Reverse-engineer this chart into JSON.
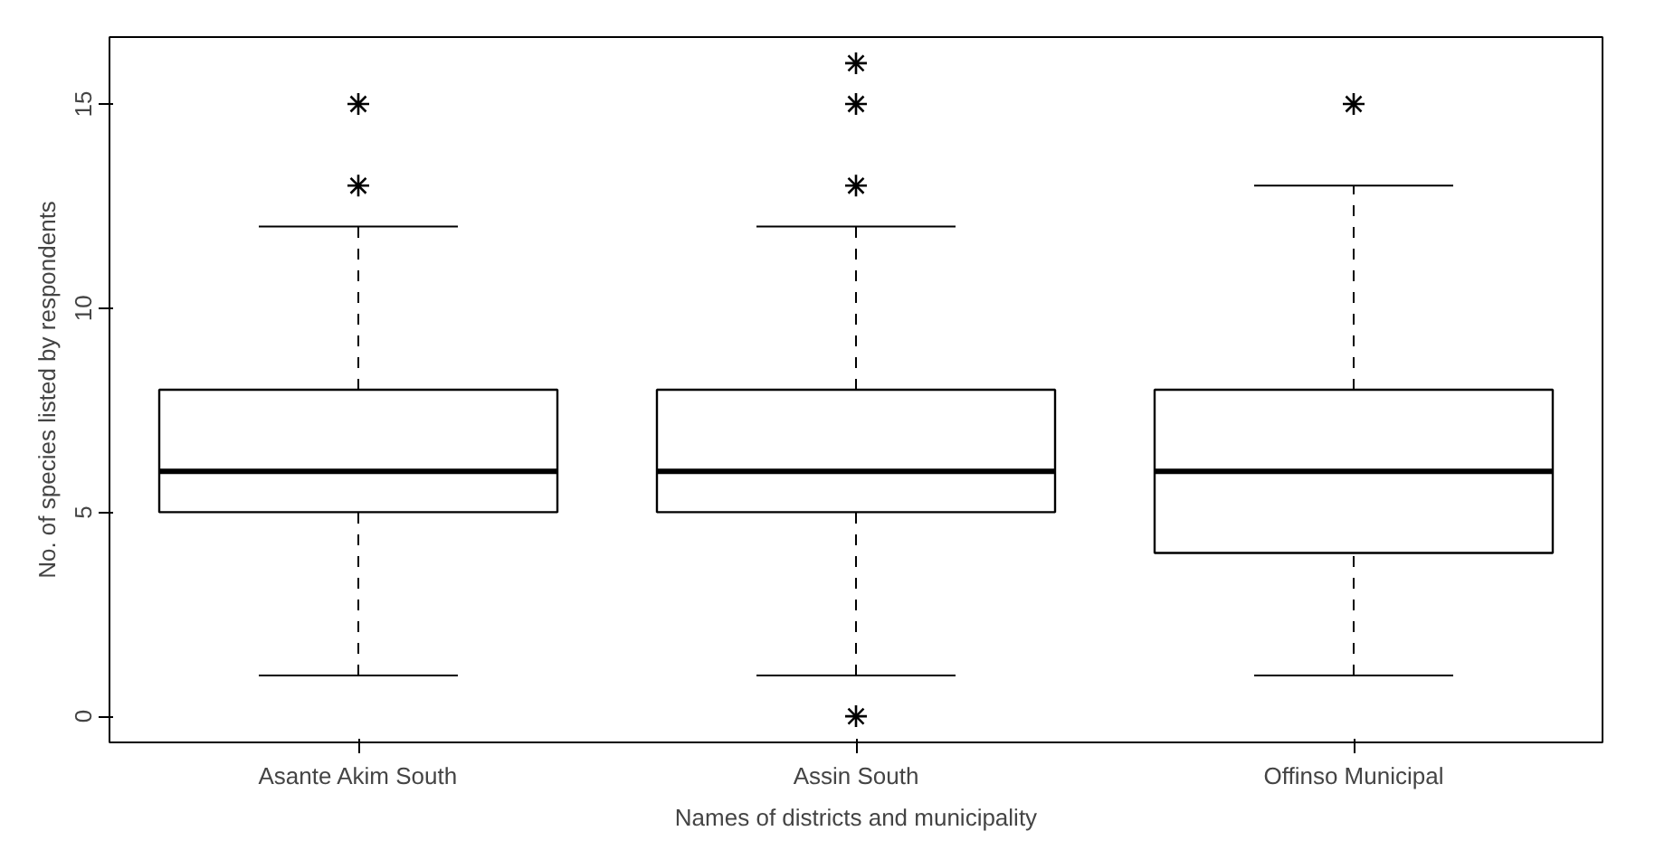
{
  "chart_data": {
    "type": "box",
    "xlabel": "Names of districts and municipality",
    "ylabel": "No. of species listed by respondents",
    "categories": [
      "Asante Akim South",
      "Assin South",
      "Offinso Municipal"
    ],
    "boxes": [
      {
        "low": 1,
        "q1": 5,
        "median": 6,
        "q3": 8,
        "high": 12,
        "outliers": [
          13,
          15
        ]
      },
      {
        "low": 1,
        "q1": 5,
        "median": 6,
        "q3": 8,
        "high": 12,
        "outliers": [
          0,
          13,
          15,
          16
        ]
      },
      {
        "low": 1,
        "q1": 4,
        "median": 6,
        "q3": 8,
        "high": 13,
        "outliers": [
          15
        ]
      }
    ],
    "ylim": [
      -0.64,
      16.64
    ],
    "yticks": [
      0,
      5,
      10,
      15
    ],
    "marker": "star",
    "line_style": "dashed"
  }
}
